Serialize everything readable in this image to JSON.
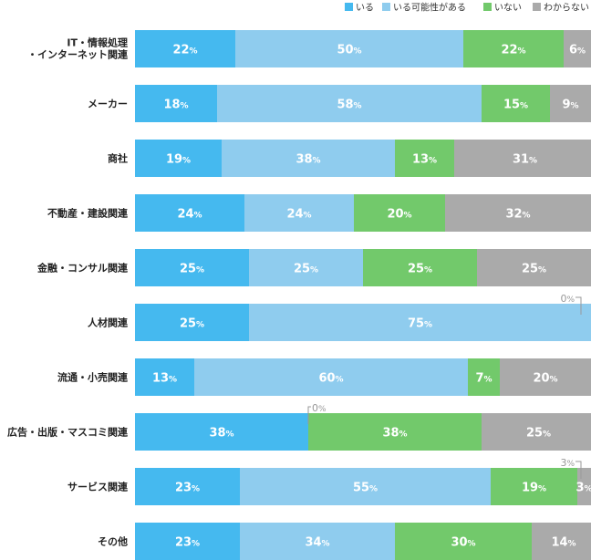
{
  "chart_data": {
    "type": "bar",
    "stacked": true,
    "orientation": "horizontal",
    "percent_suffix": "%",
    "categories": [
      [
        "IT・情報処理",
        "・インターネット関連"
      ],
      [
        "メーカー"
      ],
      [
        "商社"
      ],
      [
        "不動産・建設関連"
      ],
      [
        "金融・コンサル関連"
      ],
      [
        "人材関連"
      ],
      [
        "流通・小売関連"
      ],
      [
        "広告・出版・マスコミ関連"
      ],
      [
        "サービス関連"
      ],
      [
        "その他"
      ]
    ],
    "series": [
      {
        "name": "いる",
        "color": "#45b9ef",
        "values": [
          22,
          18,
          19,
          24,
          25,
          25,
          13,
          38,
          23,
          23
        ]
      },
      {
        "name": "いる可能性がある",
        "color": "#8fccee",
        "values": [
          50,
          58,
          38,
          24,
          25,
          75,
          60,
          0,
          55,
          34
        ]
      },
      {
        "name": "いない",
        "color": "#72c96b",
        "values": [
          22,
          15,
          13,
          20,
          25,
          0,
          7,
          38,
          19,
          30
        ]
      },
      {
        "name": "わからない",
        "color": "#aaaaaa",
        "values": [
          6,
          9,
          31,
          32,
          25,
          0,
          20,
          25,
          3,
          14
        ]
      }
    ],
    "external_labels": [
      {
        "category_index": 5,
        "series_index": 2,
        "text": "0"
      },
      {
        "category_index": 7,
        "series_index": 1,
        "text": "0"
      },
      {
        "category_index": 8,
        "series_index": 3,
        "text": "3"
      }
    ],
    "xlim": [
      0,
      100
    ],
    "legend": "top-right",
    "grid": false
  }
}
